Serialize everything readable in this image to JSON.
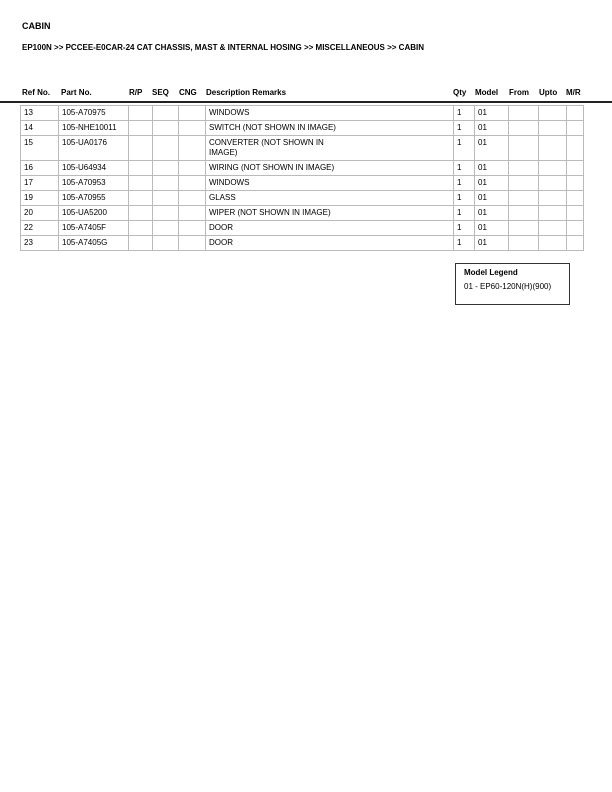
{
  "page": {
    "title": "CABIN",
    "breadcrumb": "EP100N >> PCCEE-E0CAR-24 CAT CHASSIS, MAST & INTERNAL HOSING >> MISCELLANEOUS >> CABIN"
  },
  "table": {
    "headers": [
      "Ref No.",
      "Part No.",
      "R/P",
      "SEQ",
      "CNG",
      "Description Remarks",
      "Qty",
      "Model",
      "From",
      "Upto",
      "M/R"
    ],
    "rows": [
      [
        "13",
        "105-A70975",
        "",
        "",
        "",
        "WINDOWS",
        "1",
        "01",
        "",
        "",
        ""
      ],
      [
        "14",
        "105-NHE10011",
        "",
        "",
        "",
        "SWITCH (NOT SHOWN IN IMAGE)",
        "1",
        "01",
        "",
        "",
        ""
      ],
      [
        "15",
        "105-UA0176",
        "",
        "",
        "",
        "CONVERTER (NOT SHOWN IN IMAGE)",
        "1",
        "01",
        "",
        "",
        ""
      ],
      [
        "16",
        "105-U64934",
        "",
        "",
        "",
        "WIRING (NOT SHOWN IN IMAGE)",
        "1",
        "01",
        "",
        "",
        ""
      ],
      [
        "17",
        "105-A70953",
        "",
        "",
        "",
        "WINDOWS",
        "1",
        "01",
        "",
        "",
        ""
      ],
      [
        "19",
        "105-A70955",
        "",
        "",
        "",
        "GLASS",
        "1",
        "01",
        "",
        "",
        ""
      ],
      [
        "20",
        "105-UA5200",
        "",
        "",
        "",
        "WIPER (NOT SHOWN IN IMAGE)",
        "1",
        "01",
        "",
        "",
        ""
      ],
      [
        "22",
        "105-A7405F",
        "",
        "",
        "",
        "DOOR",
        "1",
        "01",
        "",
        "",
        ""
      ],
      [
        "23",
        "105-A7405G",
        "",
        "",
        "",
        "DOOR",
        "1",
        "01",
        "",
        "",
        ""
      ]
    ]
  },
  "legend": {
    "title": "Model Legend",
    "entries": [
      "01 - EP60-120N(H)(900)"
    ]
  }
}
